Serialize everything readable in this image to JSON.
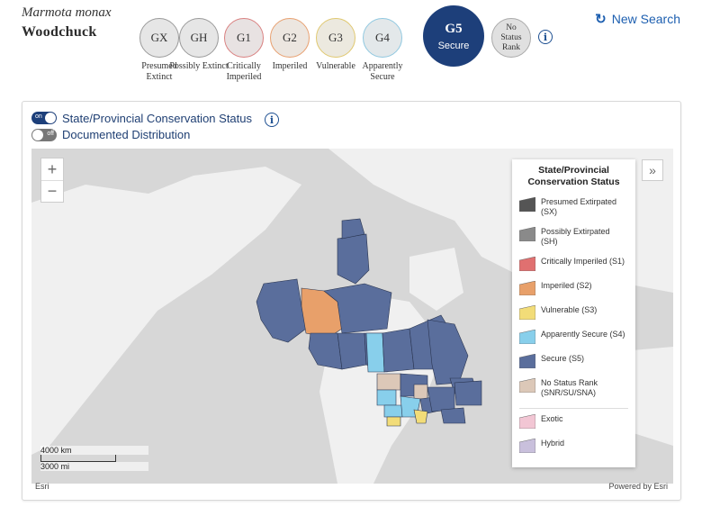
{
  "species": {
    "scientific_name": "Marmota monax",
    "common_name": "Woodchuck"
  },
  "global_ranks": [
    {
      "code": "GX",
      "label": "Presumed Extinct",
      "border": "#9a9a9a",
      "fill": "#e6e6e6"
    },
    {
      "code": "GH",
      "label": "Possibly Extinct",
      "border": "#9a9a9a",
      "fill": "#e6e6e6"
    },
    {
      "code": "G1",
      "label": "Critically Imperiled",
      "border": "#d98080",
      "fill": "#e8e2e2"
    },
    {
      "code": "G2",
      "label": "Imperiled",
      "border": "#e8a070",
      "fill": "#ece6e0"
    },
    {
      "code": "G3",
      "label": "Vulnerable",
      "border": "#e0c870",
      "fill": "#ece9df"
    },
    {
      "code": "G4",
      "label": "Apparently Secure",
      "border": "#90c8e0",
      "fill": "#e3e8ea"
    }
  ],
  "active_rank": {
    "code": "G5",
    "label": "Secure",
    "color": "#1d3f7a"
  },
  "no_rank": {
    "line1": "No",
    "line2": "Status",
    "line3": "Rank"
  },
  "new_search_label": "New Search",
  "map_panel": {
    "toggle_status": {
      "state": "on",
      "label": "State/Provincial Conservation Status"
    },
    "toggle_distribution": {
      "state": "off",
      "label": "Documented Distribution"
    },
    "zoom_in": "+",
    "zoom_out": "−",
    "legend": {
      "title": "State/Provincial Conservation Status",
      "items": [
        {
          "label": "Presumed Extirpated (SX)",
          "color": "#555555"
        },
        {
          "label": "Possibly Extirpated (SH)",
          "color": "#8a8a8a"
        },
        {
          "label": "Critically Imperiled (S1)",
          "color": "#e07070"
        },
        {
          "label": "Imperiled (S2)",
          "color": "#e8a06a"
        },
        {
          "label": "Vulnerable (S3)",
          "color": "#f2dc78"
        },
        {
          "label": "Apparently Secure (S4)",
          "color": "#88cfeb"
        },
        {
          "label": "Secure (S5)",
          "color": "#5a6e9c"
        },
        {
          "label": "No Status Rank (SNR/SU/SNA)",
          "color": "#dcc8b8"
        }
      ],
      "extra_items": [
        {
          "label": "Exotic",
          "color": "#f2c6d4"
        },
        {
          "label": "Hybrid",
          "color": "#c9c0dc"
        }
      ]
    },
    "scale": {
      "km": "4000 km",
      "mi": "3000 mi"
    },
    "attribution_left": "Esri",
    "attribution_right": "Powered by Esri"
  }
}
